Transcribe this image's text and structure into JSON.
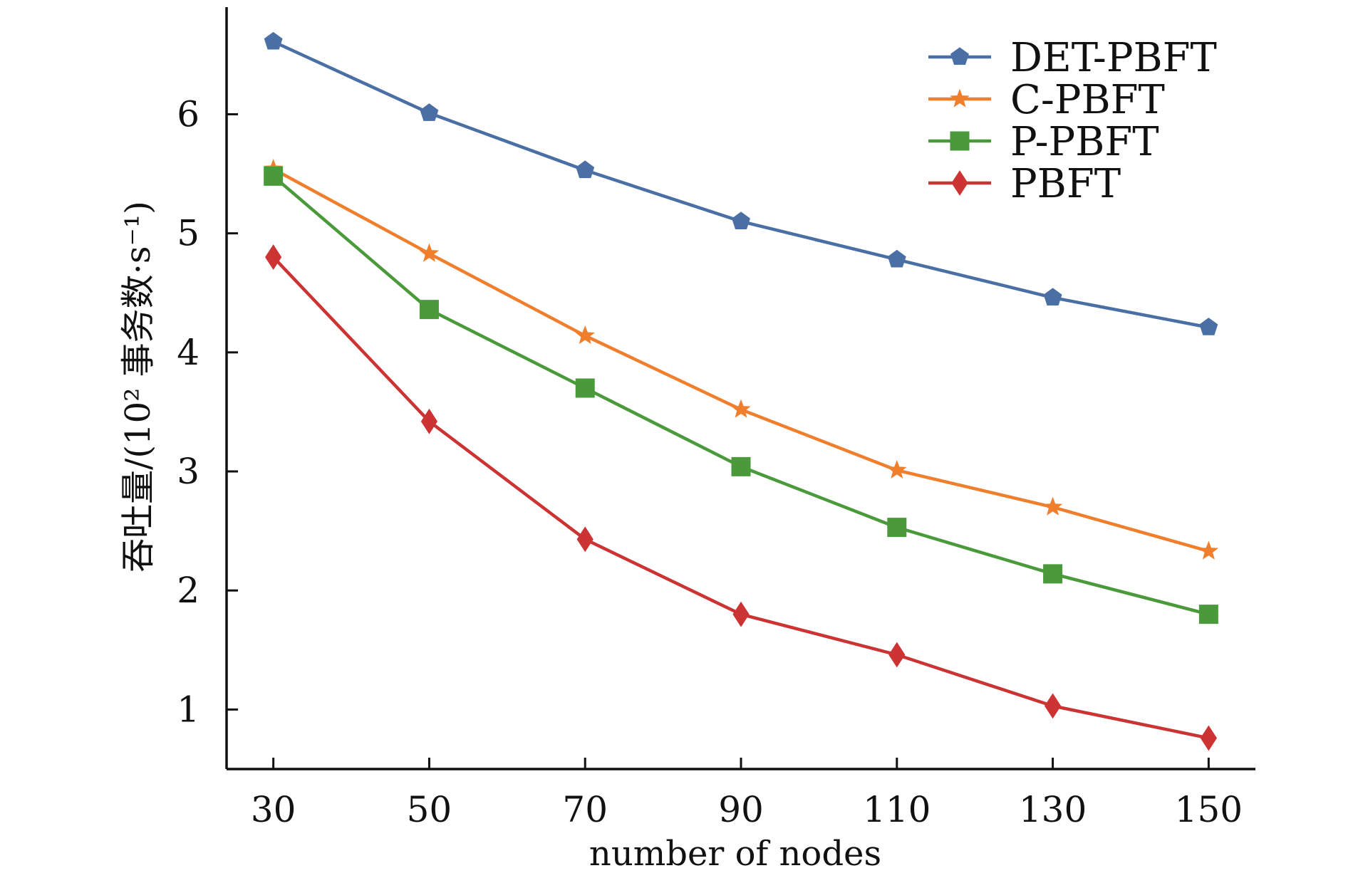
{
  "chart_data": {
    "type": "line",
    "xlabel": "number of nodes",
    "ylabel": "吞吐量/(10² 事务数·s⁻¹)",
    "x": [
      30,
      50,
      70,
      90,
      110,
      130,
      150
    ],
    "xlim": [
      24,
      156
    ],
    "ylim": [
      0.5,
      6.9
    ],
    "x_ticks": [
      "30",
      "50",
      "70",
      "90",
      "110",
      "130",
      "150"
    ],
    "y_ticks": [
      "1",
      "2",
      "3",
      "4",
      "5",
      "6"
    ],
    "grid": false,
    "legend": "top-right",
    "series": [
      {
        "name": "DET-PBFT",
        "color": "#4a6fa5",
        "marker": "pentagon",
        "values": [
          6.61,
          6.01,
          5.53,
          5.1,
          4.78,
          4.46,
          4.21
        ]
      },
      {
        "name": "C-PBFT",
        "color": "#f07f2d",
        "marker": "star",
        "values": [
          5.54,
          4.83,
          4.14,
          3.52,
          3.01,
          2.7,
          2.33
        ]
      },
      {
        "name": "P-PBFT",
        "color": "#4a9a3c",
        "marker": "square",
        "values": [
          5.48,
          4.36,
          3.7,
          3.04,
          2.53,
          2.14,
          1.8
        ]
      },
      {
        "name": "PBFT",
        "color": "#cc3333",
        "marker": "diamond",
        "values": [
          4.8,
          3.42,
          2.43,
          1.8,
          1.46,
          1.03,
          0.76
        ]
      }
    ]
  }
}
